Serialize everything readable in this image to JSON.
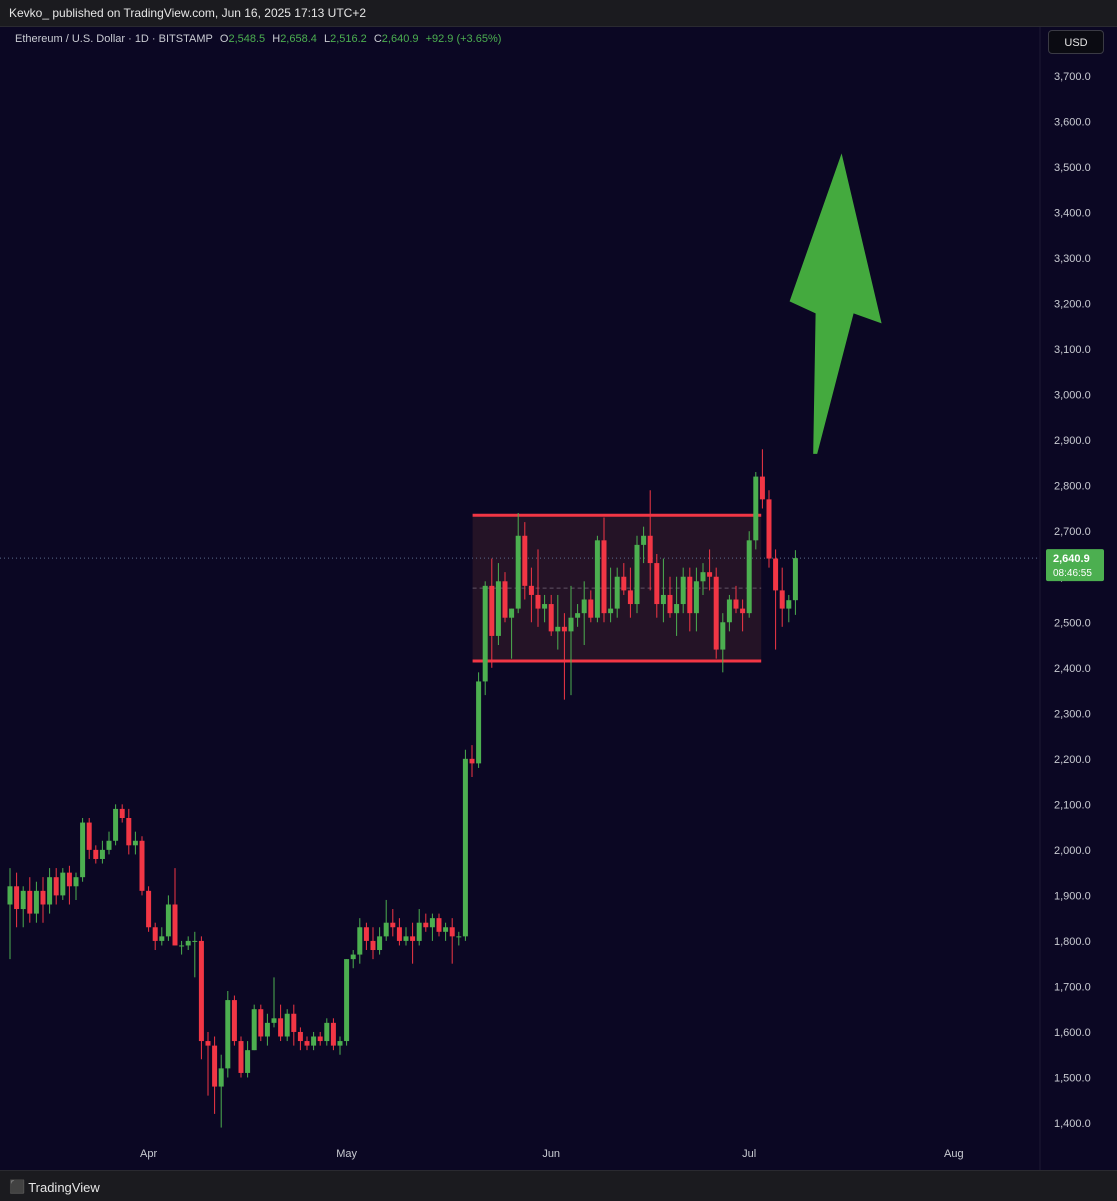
{
  "header": {
    "published_text": "Kevko_ published on TradingView.com, Jun 16, 2025 17:13 UTC+2"
  },
  "legend": {
    "symbol": "Ethereum / U.S. Dollar · 1D · BITSTAMP",
    "o_label": "O",
    "o_value": "2,548.5",
    "h_label": "H",
    "h_value": "2,658.4",
    "l_label": "L",
    "l_value": "2,516.2",
    "c_label": "C",
    "c_value": "2,640.9",
    "change": "+92.9 (+3.65%)"
  },
  "currency_button": "USD",
  "footer": {
    "logo_text": "TradingView"
  },
  "colors": {
    "background": "#0b0723",
    "up": "#4caf50",
    "down": "#f23645",
    "range_line": "#f23645",
    "arrow": "#44aa3e",
    "price_tag": "#4caf50"
  },
  "chart_data": {
    "type": "candlestick",
    "symbol": "ETHUSD",
    "interval": "1D",
    "ylim": [
      1300,
      3800
    ],
    "y_ticks": [
      "3,700.0",
      "3,600.0",
      "3,500.0",
      "3,400.0",
      "3,300.0",
      "3,200.0",
      "3,100.0",
      "3,000.0",
      "2,900.0",
      "2,800.0",
      "2,700.0",
      "2,600.0",
      "2,500.0",
      "2,400.0",
      "2,300.0",
      "2,200.0",
      "2,100.0",
      "2,000.0",
      "1,900.0",
      "1,800.0",
      "1,700.0",
      "1,600.0",
      "1,500.0",
      "1,400.0"
    ],
    "x_ticks": [
      {
        "label": "Apr",
        "date": "2025-04-01"
      },
      {
        "label": "May",
        "date": "2025-05-01"
      },
      {
        "label": "Jun",
        "date": "2025-06-01"
      },
      {
        "label": "Jul",
        "date": "2025-07-01"
      },
      {
        "label": "Aug",
        "date": "2025-08-01"
      }
    ],
    "x_start": "2025-03-11",
    "x_end": "2025-08-21",
    "candles": [
      {
        "date": "2025-03-11",
        "o": 1880,
        "h": 1960,
        "l": 1760,
        "c": 1920
      },
      {
        "date": "2025-03-12",
        "o": 1920,
        "h": 1950,
        "l": 1830,
        "c": 1870
      },
      {
        "date": "2025-03-13",
        "o": 1870,
        "h": 1920,
        "l": 1830,
        "c": 1910
      },
      {
        "date": "2025-03-14",
        "o": 1910,
        "h": 1940,
        "l": 1840,
        "c": 1860
      },
      {
        "date": "2025-03-15",
        "o": 1860,
        "h": 1930,
        "l": 1840,
        "c": 1910
      },
      {
        "date": "2025-03-16",
        "o": 1910,
        "h": 1940,
        "l": 1840,
        "c": 1880
      },
      {
        "date": "2025-03-17",
        "o": 1880,
        "h": 1960,
        "l": 1860,
        "c": 1940
      },
      {
        "date": "2025-03-18",
        "o": 1940,
        "h": 1960,
        "l": 1880,
        "c": 1900
      },
      {
        "date": "2025-03-19",
        "o": 1900,
        "h": 1960,
        "l": 1890,
        "c": 1950
      },
      {
        "date": "2025-03-20",
        "o": 1950,
        "h": 1965,
        "l": 1880,
        "c": 1920
      },
      {
        "date": "2025-03-21",
        "o": 1920,
        "h": 1950,
        "l": 1890,
        "c": 1940
      },
      {
        "date": "2025-03-22",
        "o": 1940,
        "h": 2070,
        "l": 1930,
        "c": 2060
      },
      {
        "date": "2025-03-23",
        "o": 2060,
        "h": 2070,
        "l": 1980,
        "c": 2000
      },
      {
        "date": "2025-03-24",
        "o": 2000,
        "h": 2010,
        "l": 1970,
        "c": 1980
      },
      {
        "date": "2025-03-25",
        "o": 1980,
        "h": 2020,
        "l": 1970,
        "c": 2000
      },
      {
        "date": "2025-03-26",
        "o": 2000,
        "h": 2040,
        "l": 1990,
        "c": 2020
      },
      {
        "date": "2025-03-27",
        "o": 2020,
        "h": 2100,
        "l": 2010,
        "c": 2090
      },
      {
        "date": "2025-03-28",
        "o": 2090,
        "h": 2100,
        "l": 2060,
        "c": 2070
      },
      {
        "date": "2025-03-29",
        "o": 2070,
        "h": 2090,
        "l": 1990,
        "c": 2010
      },
      {
        "date": "2025-03-30",
        "o": 2010,
        "h": 2040,
        "l": 1990,
        "c": 2020
      },
      {
        "date": "2025-03-31",
        "o": 2020,
        "h": 2030,
        "l": 1900,
        "c": 1910
      },
      {
        "date": "2025-04-01",
        "o": 1910,
        "h": 1920,
        "l": 1820,
        "c": 1830
      },
      {
        "date": "2025-04-02",
        "o": 1830,
        "h": 1840,
        "l": 1780,
        "c": 1800
      },
      {
        "date": "2025-04-03",
        "o": 1800,
        "h": 1830,
        "l": 1790,
        "c": 1810
      },
      {
        "date": "2025-04-04",
        "o": 1810,
        "h": 1900,
        "l": 1800,
        "c": 1880
      },
      {
        "date": "2025-04-05",
        "o": 1880,
        "h": 1960,
        "l": 1790,
        "c": 1790
      },
      {
        "date": "2025-04-06",
        "o": 1790,
        "h": 1800,
        "l": 1770,
        "c": 1790
      },
      {
        "date": "2025-04-07",
        "o": 1790,
        "h": 1810,
        "l": 1780,
        "c": 1800
      },
      {
        "date": "2025-04-08",
        "o": 1800,
        "h": 1820,
        "l": 1720,
        "c": 1800
      },
      {
        "date": "2025-04-09",
        "o": 1800,
        "h": 1810,
        "l": 1540,
        "c": 1580
      },
      {
        "date": "2025-04-10",
        "o": 1580,
        "h": 1600,
        "l": 1460,
        "c": 1570
      },
      {
        "date": "2025-04-11",
        "o": 1570,
        "h": 1590,
        "l": 1420,
        "c": 1480
      },
      {
        "date": "2025-04-12",
        "o": 1480,
        "h": 1550,
        "l": 1390,
        "c": 1520
      },
      {
        "date": "2025-04-13",
        "o": 1520,
        "h": 1690,
        "l": 1500,
        "c": 1670
      },
      {
        "date": "2025-04-14",
        "o": 1670,
        "h": 1680,
        "l": 1570,
        "c": 1580
      },
      {
        "date": "2025-04-15",
        "o": 1580,
        "h": 1590,
        "l": 1500,
        "c": 1510
      },
      {
        "date": "2025-04-16",
        "o": 1510,
        "h": 1580,
        "l": 1500,
        "c": 1560
      },
      {
        "date": "2025-04-17",
        "o": 1560,
        "h": 1660,
        "l": 1560,
        "c": 1650
      },
      {
        "date": "2025-04-18",
        "o": 1650,
        "h": 1660,
        "l": 1580,
        "c": 1590
      },
      {
        "date": "2025-04-19",
        "o": 1590,
        "h": 1640,
        "l": 1570,
        "c": 1620
      },
      {
        "date": "2025-04-20",
        "o": 1620,
        "h": 1720,
        "l": 1610,
        "c": 1630
      },
      {
        "date": "2025-04-21",
        "o": 1630,
        "h": 1660,
        "l": 1580,
        "c": 1590
      },
      {
        "date": "2025-04-22",
        "o": 1590,
        "h": 1650,
        "l": 1580,
        "c": 1640
      },
      {
        "date": "2025-04-23",
        "o": 1640,
        "h": 1660,
        "l": 1570,
        "c": 1600
      },
      {
        "date": "2025-04-24",
        "o": 1600,
        "h": 1610,
        "l": 1560,
        "c": 1580
      },
      {
        "date": "2025-04-25",
        "o": 1580,
        "h": 1590,
        "l": 1560,
        "c": 1570
      },
      {
        "date": "2025-04-26",
        "o": 1570,
        "h": 1600,
        "l": 1560,
        "c": 1590
      },
      {
        "date": "2025-04-27",
        "o": 1590,
        "h": 1600,
        "l": 1570,
        "c": 1580
      },
      {
        "date": "2025-04-28",
        "o": 1580,
        "h": 1630,
        "l": 1570,
        "c": 1620
      },
      {
        "date": "2025-04-29",
        "o": 1620,
        "h": 1630,
        "l": 1560,
        "c": 1570
      },
      {
        "date": "2025-04-30",
        "o": 1570,
        "h": 1590,
        "l": 1550,
        "c": 1580
      },
      {
        "date": "2025-05-01",
        "o": 1580,
        "h": 1760,
        "l": 1570,
        "c": 1760
      },
      {
        "date": "2025-05-02",
        "o": 1760,
        "h": 1780,
        "l": 1740,
        "c": 1770
      },
      {
        "date": "2025-05-03",
        "o": 1770,
        "h": 1850,
        "l": 1750,
        "c": 1830
      },
      {
        "date": "2025-05-04",
        "o": 1830,
        "h": 1840,
        "l": 1780,
        "c": 1800
      },
      {
        "date": "2025-05-05",
        "o": 1800,
        "h": 1830,
        "l": 1760,
        "c": 1780
      },
      {
        "date": "2025-05-06",
        "o": 1780,
        "h": 1830,
        "l": 1770,
        "c": 1810
      },
      {
        "date": "2025-05-07",
        "o": 1810,
        "h": 1890,
        "l": 1800,
        "c": 1840
      },
      {
        "date": "2025-05-08",
        "o": 1840,
        "h": 1870,
        "l": 1810,
        "c": 1830
      },
      {
        "date": "2025-05-09",
        "o": 1830,
        "h": 1850,
        "l": 1790,
        "c": 1800
      },
      {
        "date": "2025-05-10",
        "o": 1800,
        "h": 1830,
        "l": 1790,
        "c": 1810
      },
      {
        "date": "2025-05-11",
        "o": 1810,
        "h": 1840,
        "l": 1750,
        "c": 1800
      },
      {
        "date": "2025-05-12",
        "o": 1800,
        "h": 1870,
        "l": 1790,
        "c": 1840
      },
      {
        "date": "2025-05-13",
        "o": 1840,
        "h": 1860,
        "l": 1820,
        "c": 1830
      },
      {
        "date": "2025-05-14",
        "o": 1830,
        "h": 1860,
        "l": 1800,
        "c": 1850
      },
      {
        "date": "2025-05-15",
        "o": 1850,
        "h": 1860,
        "l": 1810,
        "c": 1820
      },
      {
        "date": "2025-05-16",
        "o": 1820,
        "h": 1840,
        "l": 1800,
        "c": 1830
      },
      {
        "date": "2025-05-17",
        "o": 1830,
        "h": 1850,
        "l": 1750,
        "c": 1810
      },
      {
        "date": "2025-05-18",
        "o": 1810,
        "h": 1820,
        "l": 1790,
        "c": 1810
      },
      {
        "date": "2025-05-19",
        "o": 1810,
        "h": 2220,
        "l": 1800,
        "c": 2200
      },
      {
        "date": "2025-05-20",
        "o": 2200,
        "h": 2230,
        "l": 2160,
        "c": 2190
      },
      {
        "date": "2025-05-21",
        "o": 2190,
        "h": 2390,
        "l": 2180,
        "c": 2370
      },
      {
        "date": "2025-05-22",
        "o": 2370,
        "h": 2590,
        "l": 2340,
        "c": 2580
      },
      {
        "date": "2025-05-23",
        "o": 2580,
        "h": 2640,
        "l": 2400,
        "c": 2470
      },
      {
        "date": "2025-05-24",
        "o": 2470,
        "h": 2630,
        "l": 2450,
        "c": 2590
      },
      {
        "date": "2025-05-25",
        "o": 2590,
        "h": 2610,
        "l": 2500,
        "c": 2510
      },
      {
        "date": "2025-05-26",
        "o": 2510,
        "h": 2530,
        "l": 2420,
        "c": 2530
      },
      {
        "date": "2025-05-27",
        "o": 2530,
        "h": 2740,
        "l": 2520,
        "c": 2690
      },
      {
        "date": "2025-05-28",
        "o": 2690,
        "h": 2720,
        "l": 2550,
        "c": 2580
      },
      {
        "date": "2025-05-29",
        "o": 2580,
        "h": 2620,
        "l": 2500,
        "c": 2560
      },
      {
        "date": "2025-05-30",
        "o": 2560,
        "h": 2660,
        "l": 2490,
        "c": 2530
      },
      {
        "date": "2025-05-31",
        "o": 2530,
        "h": 2560,
        "l": 2500,
        "c": 2540
      }
    ],
    "candles_2": [
      {
        "date": "2025-06-01",
        "o": 2540,
        "h": 2560,
        "l": 2470,
        "c": 2480
      },
      {
        "date": "2025-06-02",
        "o": 2480,
        "h": 2560,
        "l": 2440,
        "c": 2490
      },
      {
        "date": "2025-06-03",
        "o": 2490,
        "h": 2520,
        "l": 2330,
        "c": 2480
      },
      {
        "date": "2025-06-04",
        "o": 2480,
        "h": 2580,
        "l": 2340,
        "c": 2510
      },
      {
        "date": "2025-06-05",
        "o": 2510,
        "h": 2540,
        "l": 2490,
        "c": 2520
      },
      {
        "date": "2025-06-06",
        "o": 2520,
        "h": 2590,
        "l": 2450,
        "c": 2550
      },
      {
        "date": "2025-06-07",
        "o": 2550,
        "h": 2570,
        "l": 2500,
        "c": 2510
      },
      {
        "date": "2025-06-08",
        "o": 2510,
        "h": 2690,
        "l": 2500,
        "c": 2680
      },
      {
        "date": "2025-06-09",
        "o": 2680,
        "h": 2730,
        "l": 2500,
        "c": 2520
      },
      {
        "date": "2025-06-10",
        "o": 2520,
        "h": 2620,
        "l": 2500,
        "c": 2530
      },
      {
        "date": "2025-06-11",
        "o": 2530,
        "h": 2620,
        "l": 2510,
        "c": 2600
      },
      {
        "date": "2025-06-12",
        "o": 2600,
        "h": 2630,
        "l": 2560,
        "c": 2570
      },
      {
        "date": "2025-06-13",
        "o": 2570,
        "h": 2620,
        "l": 2510,
        "c": 2540
      },
      {
        "date": "2025-06-14",
        "o": 2540,
        "h": 2690,
        "l": 2520,
        "c": 2670
      },
      {
        "date": "2025-06-15",
        "o": 2670,
        "h": 2710,
        "l": 2630,
        "c": 2690
      },
      {
        "date": "2025-06-16",
        "o": 2690,
        "h": 2790,
        "l": 2570,
        "c": 2630
      },
      {
        "date": "2025-06-17",
        "o": 2630,
        "h": 2650,
        "l": 2510,
        "c": 2540
      },
      {
        "date": "2025-06-18",
        "o": 2540,
        "h": 2640,
        "l": 2500,
        "c": 2560
      },
      {
        "date": "2025-06-19",
        "o": 2560,
        "h": 2600,
        "l": 2510,
        "c": 2520
      },
      {
        "date": "2025-06-20",
        "o": 2520,
        "h": 2600,
        "l": 2470,
        "c": 2540
      },
      {
        "date": "2025-06-21",
        "o": 2540,
        "h": 2620,
        "l": 2520,
        "c": 2600
      },
      {
        "date": "2025-06-22",
        "o": 2600,
        "h": 2620,
        "l": 2480,
        "c": 2520
      },
      {
        "date": "2025-06-23",
        "o": 2520,
        "h": 2620,
        "l": 2480,
        "c": 2590
      },
      {
        "date": "2025-06-24",
        "o": 2590,
        "h": 2630,
        "l": 2560,
        "c": 2610
      },
      {
        "date": "2025-06-25",
        "o": 2610,
        "h": 2660,
        "l": 2570,
        "c": 2600
      },
      {
        "date": "2025-06-26",
        "o": 2600,
        "h": 2620,
        "l": 2420,
        "c": 2440
      },
      {
        "date": "2025-06-27",
        "o": 2440,
        "h": 2520,
        "l": 2390,
        "c": 2500
      },
      {
        "date": "2025-06-28",
        "o": 2500,
        "h": 2560,
        "l": 2480,
        "c": 2550
      },
      {
        "date": "2025-06-29",
        "o": 2550,
        "h": 2580,
        "l": 2520,
        "c": 2530
      },
      {
        "date": "2025-06-30",
        "o": 2530,
        "h": 2550,
        "l": 2480,
        "c": 2520
      },
      {
        "date": "2025-07-01",
        "o": 2520,
        "h": 2700,
        "l": 2510,
        "c": 2680
      },
      {
        "date": "2025-07-02",
        "o": 2680,
        "h": 2830,
        "l": 2660,
        "c": 2820
      },
      {
        "date": "2025-07-03",
        "o": 2820,
        "h": 2880,
        "l": 2750,
        "c": 2770
      },
      {
        "date": "2025-07-04",
        "o": 2770,
        "h": 2790,
        "l": 2620,
        "c": 2640
      },
      {
        "date": "2025-07-05",
        "o": 2640,
        "h": 2660,
        "l": 2440,
        "c": 2570
      },
      {
        "date": "2025-07-06",
        "o": 2570,
        "h": 2620,
        "l": 2490,
        "c": 2530
      },
      {
        "date": "2025-07-07",
        "o": 2530,
        "h": 2560,
        "l": 2500,
        "c": 2548.5
      },
      {
        "date": "2025-07-08",
        "o": 2548.5,
        "h": 2658.4,
        "l": 2516.2,
        "c": 2640.9
      }
    ],
    "annotations": {
      "range_box": {
        "top": 2735,
        "bottom": 2415,
        "from": "2025-05-21",
        "to": "2025-07-01"
      },
      "range_mid": 2575,
      "arrow": {
        "from_date": "2025-07-11",
        "from_price": 2870,
        "to_date": "2025-07-15",
        "to_price": 3530
      },
      "last_price": {
        "value": "2,640.9",
        "countdown": "08:46:55",
        "price": 2640.9
      }
    }
  }
}
